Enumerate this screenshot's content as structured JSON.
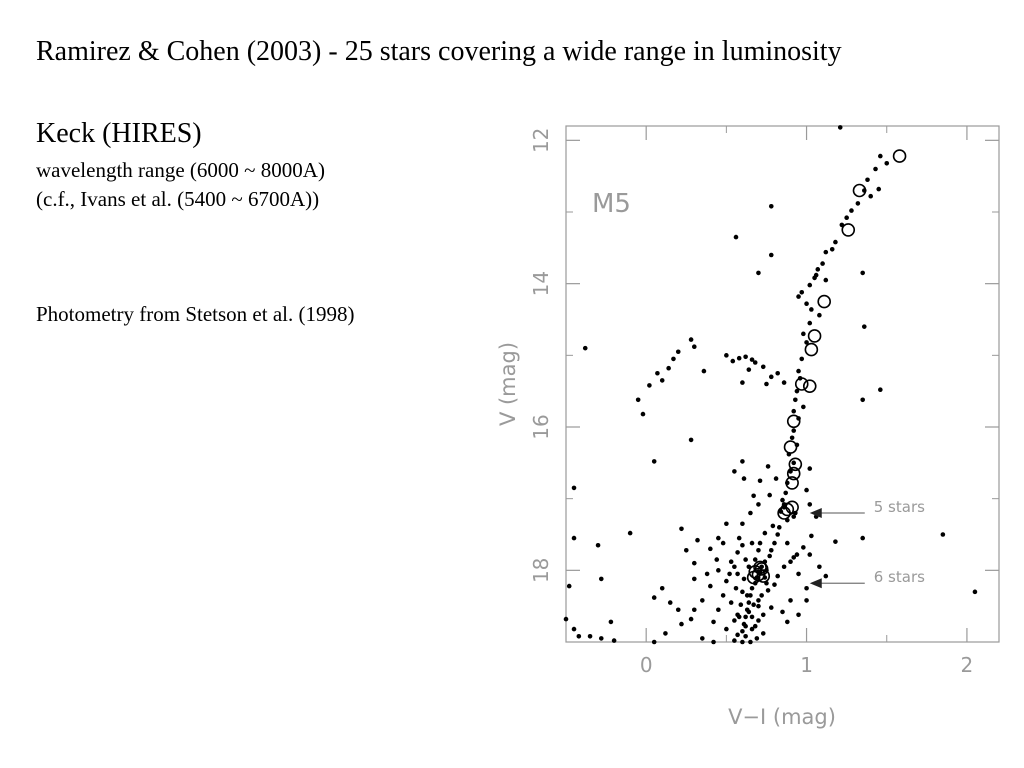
{
  "slide": {
    "title": "Ramirez & Cohen (2003) - 25 stars covering a wide range in luminosity",
    "instrument": "Keck (HIRES)",
    "wavelength": "wavelength range (6000 ~ 8000A)",
    "comparison": "(c.f., Ivans et al. (5400 ~ 6700A))",
    "photometry": "Photometry from Stetson et al. (1998)"
  },
  "chart_data": {
    "type": "scatter",
    "title": "M5",
    "xlabel": "V−I (mag)",
    "ylabel": "V (mag)",
    "xlim": [
      -0.5,
      2.2
    ],
    "ylim": [
      19.0,
      11.8
    ],
    "y_inverted": true,
    "x_ticks": [
      0,
      1,
      2
    ],
    "y_ticks": [
      12,
      14,
      16,
      18
    ],
    "grid": false,
    "series": [
      {
        "marker": "dot",
        "points": [
          [
            1.21,
            11.82
          ],
          [
            1.46,
            12.22
          ],
          [
            1.5,
            12.32
          ],
          [
            1.43,
            12.4
          ],
          [
            1.38,
            12.55
          ],
          [
            1.45,
            12.68
          ],
          [
            1.4,
            12.78
          ],
          [
            1.36,
            12.7
          ],
          [
            1.32,
            12.88
          ],
          [
            1.28,
            12.98
          ],
          [
            1.25,
            13.08
          ],
          [
            1.22,
            13.18
          ],
          [
            1.18,
            13.42
          ],
          [
            1.16,
            13.52
          ],
          [
            1.12,
            13.56
          ],
          [
            1.1,
            13.72
          ],
          [
            1.07,
            13.8
          ],
          [
            1.05,
            13.92
          ],
          [
            1.02,
            14.02
          ],
          [
            0.97,
            14.12
          ],
          [
            0.95,
            14.18
          ],
          [
            1.0,
            14.28
          ],
          [
            1.03,
            14.36
          ],
          [
            1.08,
            14.44
          ],
          [
            1.02,
            14.55
          ],
          [
            0.98,
            14.7
          ],
          [
            1.0,
            14.82
          ],
          [
            0.97,
            15.05
          ],
          [
            0.95,
            15.22
          ],
          [
            0.96,
            15.32
          ],
          [
            0.94,
            15.5
          ],
          [
            0.93,
            15.62
          ],
          [
            0.92,
            15.78
          ],
          [
            0.95,
            15.88
          ],
          [
            0.92,
            16.05
          ],
          [
            0.91,
            16.15
          ],
          [
            0.94,
            16.25
          ],
          [
            0.89,
            16.38
          ],
          [
            0.92,
            16.5
          ],
          [
            0.9,
            16.62
          ],
          [
            0.88,
            16.78
          ],
          [
            0.87,
            16.92
          ],
          [
            0.85,
            17.02
          ],
          [
            0.86,
            17.08
          ],
          [
            0.84,
            17.18
          ],
          [
            0.88,
            17.3
          ],
          [
            0.83,
            17.4
          ],
          [
            0.82,
            17.5
          ],
          [
            0.8,
            17.62
          ],
          [
            0.78,
            17.72
          ],
          [
            0.77,
            17.8
          ],
          [
            0.74,
            17.88
          ],
          [
            0.72,
            17.95
          ],
          [
            0.7,
            18.02
          ],
          [
            0.69,
            18.1
          ],
          [
            0.68,
            18.18
          ],
          [
            0.66,
            18.25
          ],
          [
            0.65,
            18.35
          ],
          [
            0.64,
            18.45
          ],
          [
            0.63,
            18.55
          ],
          [
            0.62,
            18.65
          ],
          [
            0.61,
            18.75
          ],
          [
            0.6,
            18.85
          ],
          [
            0.62,
            18.92
          ],
          [
            0.58,
            17.55
          ],
          [
            0.6,
            17.65
          ],
          [
            0.57,
            17.75
          ],
          [
            0.62,
            17.85
          ],
          [
            0.55,
            17.95
          ],
          [
            0.52,
            18.05
          ],
          [
            0.5,
            18.15
          ],
          [
            0.56,
            18.25
          ],
          [
            0.48,
            18.35
          ],
          [
            0.53,
            18.45
          ],
          [
            0.45,
            18.55
          ],
          [
            0.57,
            18.62
          ],
          [
            0.42,
            18.72
          ],
          [
            0.5,
            18.82
          ],
          [
            0.66,
            17.62
          ],
          [
            0.7,
            17.72
          ],
          [
            0.74,
            17.48
          ],
          [
            0.79,
            17.38
          ],
          [
            0.72,
            18.35
          ],
          [
            0.76,
            18.28
          ],
          [
            0.8,
            18.2
          ],
          [
            0.82,
            18.08
          ],
          [
            0.86,
            17.95
          ],
          [
            0.9,
            17.88
          ],
          [
            0.94,
            17.78
          ],
          [
            0.98,
            17.68
          ],
          [
            0.73,
            18.62
          ],
          [
            0.78,
            18.52
          ],
          [
            0.68,
            18.78
          ],
          [
            0.73,
            18.88
          ],
          [
            0.35,
            18.42
          ],
          [
            0.3,
            18.55
          ],
          [
            0.28,
            18.68
          ],
          [
            0.22,
            18.75
          ],
          [
            0.4,
            18.22
          ],
          [
            0.38,
            18.05
          ],
          [
            0.44,
            17.85
          ],
          [
            0.6,
            17.35
          ],
          [
            0.65,
            17.2
          ],
          [
            0.7,
            17.08
          ],
          [
            0.77,
            16.95
          ],
          [
            0.81,
            16.72
          ],
          [
            0.76,
            16.55
          ],
          [
            0.71,
            16.75
          ],
          [
            0.67,
            16.96
          ],
          [
            0.5,
            17.35
          ],
          [
            0.45,
            17.55
          ],
          [
            1.0,
            16.88
          ],
          [
            1.02,
            17.08
          ],
          [
            1.06,
            17.25
          ],
          [
            1.03,
            17.52
          ],
          [
            1.02,
            17.78
          ],
          [
            1.08,
            17.95
          ],
          [
            1.12,
            18.08
          ],
          [
            1.0,
            18.25
          ],
          [
            0.9,
            18.42
          ],
          [
            0.85,
            18.58
          ],
          [
            0.88,
            18.72
          ],
          [
            0.95,
            18.62
          ],
          [
            1.18,
            17.6
          ],
          [
            1.35,
            17.55
          ],
          [
            1.85,
            17.5
          ],
          [
            2.05,
            18.3
          ],
          [
            0.55,
            16.62
          ],
          [
            0.61,
            16.72
          ],
          [
            0.6,
            16.48
          ],
          [
            0.05,
            16.48
          ],
          [
            0.28,
            16.18
          ],
          [
            -0.02,
            15.82
          ],
          [
            -0.05,
            15.62
          ],
          [
            0.02,
            15.42
          ],
          [
            0.07,
            15.25
          ],
          [
            0.1,
            15.35
          ],
          [
            0.14,
            15.18
          ],
          [
            0.17,
            15.05
          ],
          [
            0.2,
            14.95
          ],
          [
            0.3,
            14.88
          ],
          [
            0.28,
            14.78
          ],
          [
            0.36,
            15.22
          ],
          [
            0.5,
            15.0
          ],
          [
            0.54,
            15.08
          ],
          [
            0.58,
            15.04
          ],
          [
            0.62,
            15.02
          ],
          [
            0.66,
            15.06
          ],
          [
            0.64,
            15.2
          ],
          [
            0.68,
            15.1
          ],
          [
            0.73,
            15.16
          ],
          [
            0.78,
            15.3
          ],
          [
            0.82,
            15.25
          ],
          [
            0.86,
            15.38
          ],
          [
            0.75,
            15.4
          ],
          [
            0.6,
            15.38
          ],
          [
            1.35,
            15.62
          ],
          [
            1.46,
            15.48
          ],
          [
            1.36,
            14.6
          ],
          [
            1.35,
            13.85
          ],
          [
            0.7,
            13.85
          ],
          [
            0.78,
            12.92
          ],
          [
            0.56,
            13.35
          ],
          [
            0.78,
            13.6
          ],
          [
            1.06,
            13.88
          ],
          [
            1.12,
            13.95
          ],
          [
            0.98,
            15.72
          ],
          [
            1.02,
            16.58
          ],
          [
            0.88,
            17.62
          ],
          [
            0.92,
            17.82
          ],
          [
            0.95,
            18.05
          ],
          [
            1.0,
            18.42
          ],
          [
            -0.38,
            14.9
          ],
          [
            -0.45,
            16.85
          ],
          [
            -0.45,
            17.55
          ],
          [
            -0.3,
            17.65
          ],
          [
            -0.28,
            18.12
          ],
          [
            -0.22,
            18.72
          ],
          [
            -0.48,
            18.22
          ],
          [
            -0.45,
            18.82
          ],
          [
            -0.42,
            18.92
          ],
          [
            -0.35,
            18.92
          ],
          [
            -0.28,
            18.95
          ],
          [
            -0.2,
            18.98
          ],
          [
            -0.5,
            18.68
          ],
          [
            0.05,
            18.38
          ],
          [
            0.1,
            18.25
          ],
          [
            0.15,
            18.45
          ],
          [
            0.2,
            18.55
          ],
          [
            0.12,
            18.88
          ],
          [
            0.05,
            19.0
          ],
          [
            0.35,
            18.95
          ],
          [
            0.42,
            19.0
          ],
          [
            0.55,
            18.98
          ],
          [
            0.57,
            18.9
          ],
          [
            0.4,
            17.7
          ],
          [
            0.48,
            17.62
          ],
          [
            0.53,
            17.88
          ],
          [
            -0.1,
            17.48
          ],
          [
            0.22,
            17.42
          ],
          [
            0.25,
            17.72
          ],
          [
            0.3,
            17.9
          ],
          [
            0.32,
            17.58
          ],
          [
            0.45,
            18.0
          ],
          [
            0.3,
            18.12
          ],
          [
            0.7,
            18.5
          ],
          [
            0.63,
            18.35
          ],
          [
            0.66,
            18.65
          ],
          [
            0.75,
            18.18
          ],
          [
            0.71,
            17.62
          ],
          [
            0.68,
            17.85
          ],
          [
            0.64,
            17.95
          ],
          [
            0.61,
            18.12
          ],
          [
            0.67,
            18.48
          ],
          [
            0.64,
            18.58
          ],
          [
            0.7,
            18.7
          ],
          [
            0.66,
            18.82
          ],
          [
            0.69,
            18.95
          ],
          [
            0.74,
            18.1
          ],
          [
            0.6,
            18.3
          ],
          [
            0.57,
            18.05
          ],
          [
            0.59,
            18.48
          ],
          [
            0.58,
            18.65
          ],
          [
            0.62,
            18.78
          ],
          [
            0.93,
            17.2
          ],
          [
            0.86,
            17.12
          ],
          [
            0.92,
            17.25
          ],
          [
            0.6,
            19.0
          ],
          [
            0.65,
            19.0
          ],
          [
            0.7,
            18.42
          ],
          [
            0.75,
            18.0
          ],
          [
            0.55,
            18.7
          ]
        ]
      },
      {
        "marker": "open-circle",
        "points": [
          [
            1.58,
            12.22
          ],
          [
            1.33,
            12.7
          ],
          [
            1.26,
            13.25
          ],
          [
            1.11,
            14.25
          ],
          [
            1.05,
            14.73
          ],
          [
            1.03,
            14.92
          ],
          [
            1.02,
            15.43
          ],
          [
            0.97,
            15.4
          ],
          [
            0.92,
            15.92
          ],
          [
            0.9,
            16.28
          ],
          [
            0.93,
            16.52
          ],
          [
            0.92,
            16.65
          ],
          [
            0.91,
            16.78
          ],
          [
            0.86,
            17.2
          ],
          [
            0.88,
            17.15
          ],
          [
            0.91,
            17.12
          ],
          [
            0.72,
            17.98
          ],
          [
            0.68,
            18.02
          ],
          [
            0.7,
            18.06
          ],
          [
            0.73,
            18.08
          ],
          [
            0.67,
            18.1
          ],
          [
            0.71,
            17.96
          ]
        ]
      }
    ],
    "annotations": [
      {
        "text": "5 stars",
        "x": 1.02,
        "y": 17.2
      },
      {
        "text": "6 stars",
        "x": 1.02,
        "y": 18.18
      }
    ]
  }
}
